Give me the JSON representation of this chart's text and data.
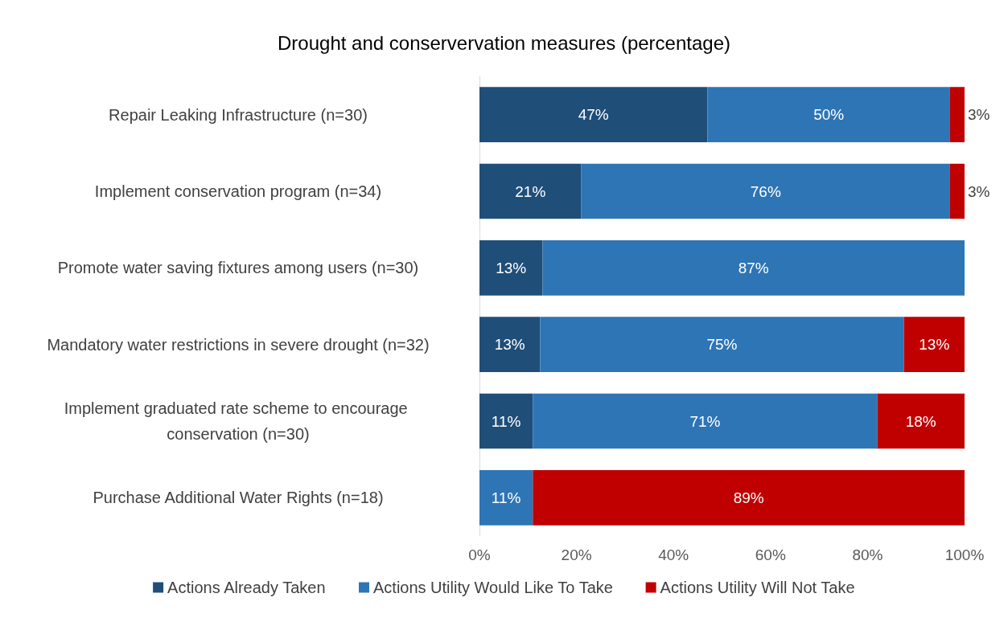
{
  "chart_data": {
    "type": "bar",
    "orientation": "horizontal",
    "stacked": true,
    "title": "Drought and conservervation measures (percentage)",
    "categories": [
      "Repair Leaking Infrastructure (n=30)",
      "Implement conservation program (n=34)",
      "Promote water saving fixtures among users (n=30)",
      "Mandatory water restrictions in severe drought (n=32)",
      "Implement graduated rate scheme to encourage conservation (n=30)",
      "Purchase Additional Water Rights (n=18)"
    ],
    "series": [
      {
        "name": "Actions Already Taken",
        "color": "#1f4e79",
        "values": [
          47,
          21,
          13,
          12.5,
          11,
          null
        ],
        "value_labels": [
          "47%",
          "21%",
          "13%",
          "13%",
          "11%",
          null
        ]
      },
      {
        "name": "Actions Utility Would Like To Take",
        "color": "#2e75b6",
        "values": [
          50,
          76,
          87,
          75,
          71,
          11
        ],
        "value_labels": [
          "50%",
          "76%",
          "87%",
          "75%",
          "71%",
          "11%"
        ]
      },
      {
        "name": "Actions Utility Will Not Take",
        "color": "#c00000",
        "values": [
          3,
          3,
          null,
          12.5,
          18,
          89
        ],
        "value_labels": [
          "3%",
          "3%",
          null,
          "13%",
          "18%",
          "89%"
        ]
      }
    ],
    "xlim": [
      0,
      100
    ],
    "xticks": [
      {
        "value": 0,
        "label": "0%"
      },
      {
        "value": 20,
        "label": "20%"
      },
      {
        "value": 40,
        "label": "40%"
      },
      {
        "value": 60,
        "label": "60%"
      },
      {
        "value": 80,
        "label": "80%"
      },
      {
        "value": 100,
        "label": "100%"
      }
    ],
    "grid": false,
    "legend": "bottom"
  }
}
